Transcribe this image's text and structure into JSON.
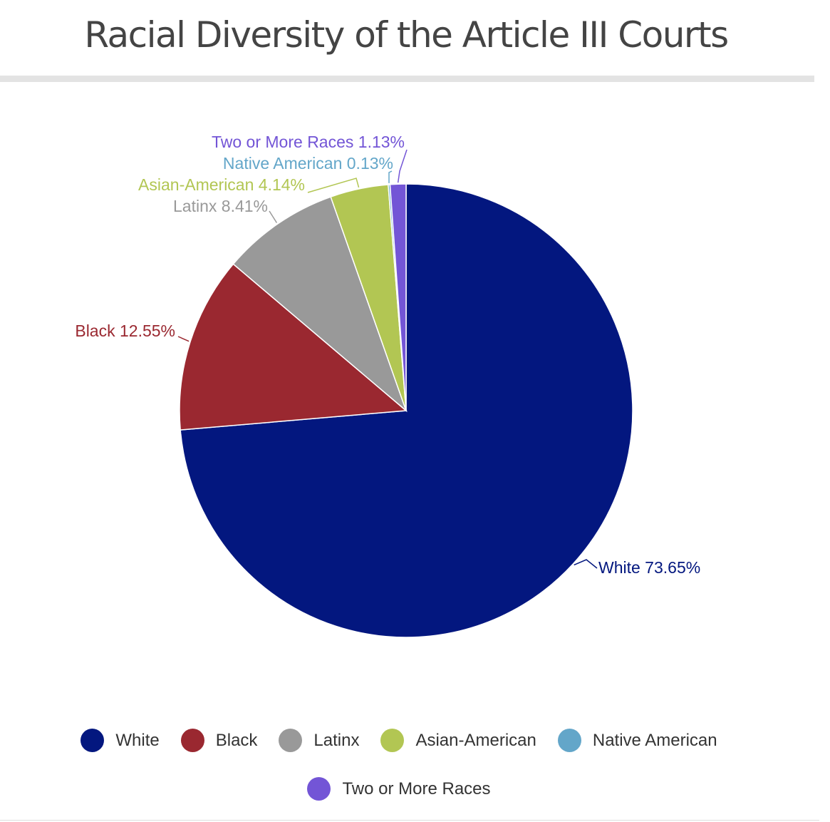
{
  "chart_data": {
    "type": "pie",
    "title": "Racial Diversity of the Article III Courts",
    "slices": [
      {
        "name": "White",
        "value": 73.65,
        "label": "White 73.65%",
        "color": "#03177f"
      },
      {
        "name": "Black",
        "value": 12.55,
        "label": "Black 12.55%",
        "color": "#9a2830"
      },
      {
        "name": "Latinx",
        "value": 8.41,
        "label": "Latinx 8.41%",
        "color": "#999999"
      },
      {
        "name": "Asian-American",
        "value": 4.14,
        "label": "Asian-American 4.14%",
        "color": "#b2c653"
      },
      {
        "name": "Native American",
        "value": 0.13,
        "label": "Native American 0.13%",
        "color": "#63a6c9"
      },
      {
        "name": "Two or More Races",
        "value": 1.13,
        "label": "Two or More Races 1.13%",
        "color": "#7355d6"
      }
    ],
    "legend_position": "bottom"
  }
}
